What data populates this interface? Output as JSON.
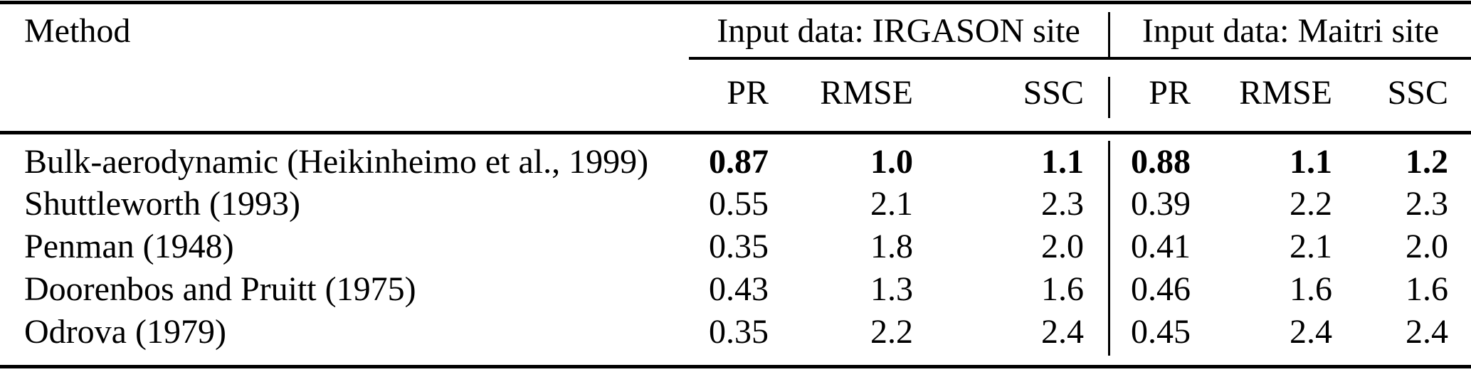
{
  "table": {
    "method_column_header": "Method",
    "groups": [
      {
        "label": "Input data: IRGASON site",
        "columns": [
          "PR",
          "RMSE",
          "SSC"
        ]
      },
      {
        "label": "Input data: Maitri site",
        "columns": [
          "PR",
          "RMSE",
          "SSC"
        ]
      }
    ],
    "rows": [
      {
        "method": "Bulk-aerodynamic (Heikinheimo et al., 1999)",
        "bold_values": true,
        "values": [
          "0.87",
          "1.0",
          "1.1",
          "0.88",
          "1.1",
          "1.2"
        ]
      },
      {
        "method": "Shuttleworth (1993)",
        "bold_values": false,
        "values": [
          "0.55",
          "2.1",
          "2.3",
          "0.39",
          "2.2",
          "2.3"
        ]
      },
      {
        "method": "Penman (1948)",
        "bold_values": false,
        "values": [
          "0.35",
          "1.8",
          "2.0",
          "0.41",
          "2.1",
          "2.0"
        ]
      },
      {
        "method": "Doorenbos and Pruitt (1975)",
        "bold_values": false,
        "values": [
          "0.43",
          "1.3",
          "1.6",
          "0.46",
          "1.6",
          "1.6"
        ]
      },
      {
        "method": "Odrova (1979)",
        "bold_values": false,
        "values": [
          "0.35",
          "2.2",
          "2.4",
          "0.45",
          "2.4",
          "2.4"
        ]
      }
    ]
  },
  "colors": {
    "text": "#000000",
    "rules": "#000000",
    "background": "#ffffff"
  }
}
